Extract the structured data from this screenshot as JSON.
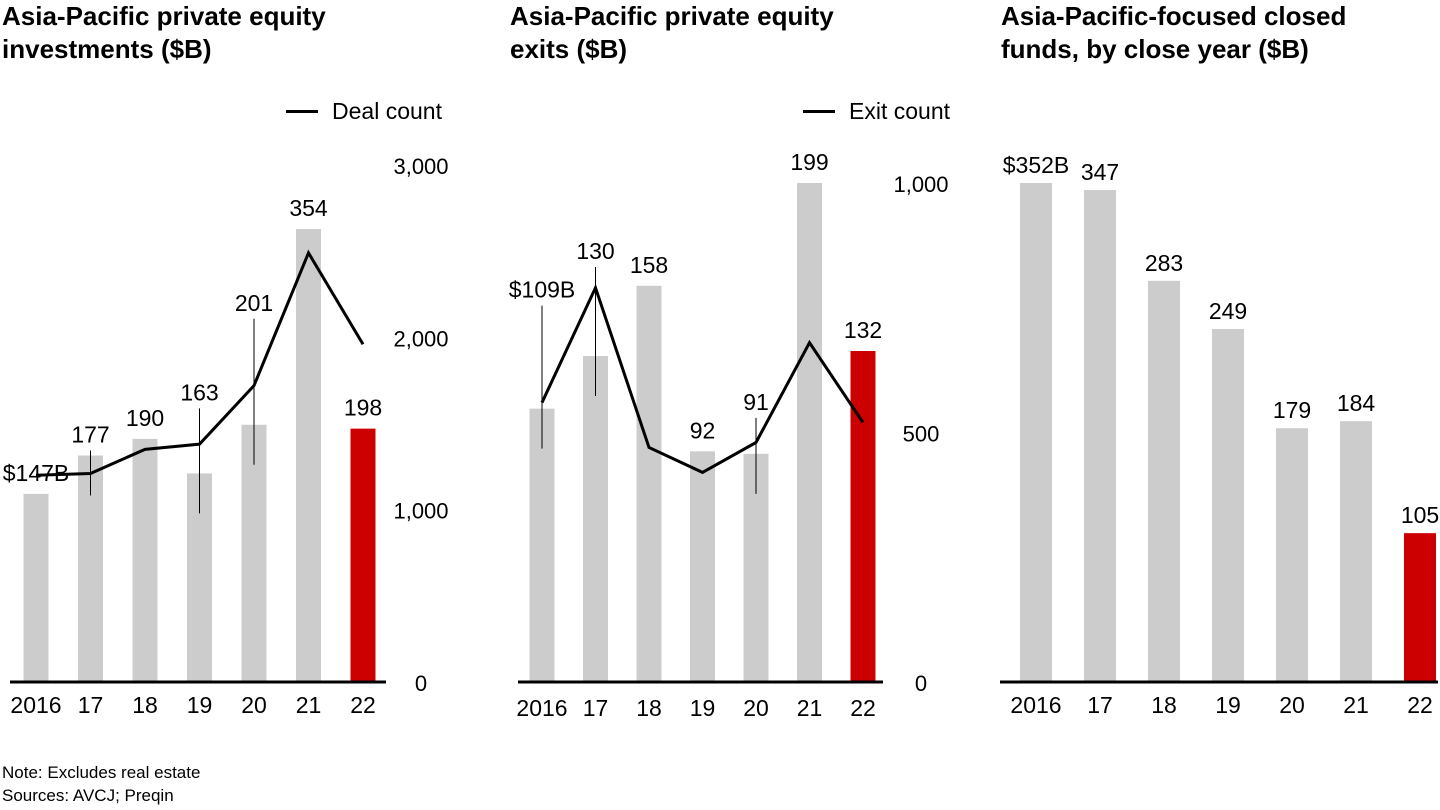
{
  "colors": {
    "bar": "#cccccc",
    "highlight": "#cc0000",
    "line": "#000000",
    "axis": "#000000"
  },
  "chart_data": [
    {
      "type": "bar",
      "title": "Asia-Pacific private equity investments ($B)",
      "categories": [
        "2016",
        "17",
        "18",
        "19",
        "20",
        "21",
        "22"
      ],
      "values": [
        147,
        177,
        190,
        163,
        201,
        354,
        198
      ],
      "value_labels": [
        "$147B",
        "177",
        "190",
        "163",
        "201",
        "354",
        "198"
      ],
      "highlight_index": 6,
      "ylim": [
        0,
        400
      ],
      "line_series": {
        "name": "Deal count",
        "axis": "right",
        "values": [
          1200,
          1210,
          1350,
          1380,
          1720,
          2490,
          1960
        ]
      },
      "right_axis": {
        "ticks": [
          0,
          1000,
          2000,
          3000
        ],
        "tick_labels": [
          "0",
          "1,000",
          "2,000",
          "3,000"
        ],
        "ylim": [
          0,
          3000
        ]
      }
    },
    {
      "type": "bar",
      "title": "Asia-Pacific private equity exits ($B)",
      "categories": [
        "2016",
        "17",
        "18",
        "19",
        "20",
        "21",
        "22"
      ],
      "values": [
        109,
        130,
        158,
        92,
        91,
        199,
        132
      ],
      "value_labels": [
        "$109B",
        "130",
        "158",
        "92",
        "91",
        "199",
        "132"
      ],
      "highlight_index": 6,
      "ylim": [
        0,
        203
      ],
      "line_series": {
        "name": "Exit count",
        "axis": "right",
        "values": [
          560,
          790,
          470,
          420,
          480,
          680,
          520
        ]
      },
      "right_axis": {
        "ticks": [
          0,
          500,
          1000
        ],
        "tick_labels": [
          "0",
          "500",
          "1,000"
        ],
        "ylim": [
          0,
          1000
        ]
      }
    },
    {
      "type": "bar",
      "title": "Asia-Pacific-focused closed funds, by close year ($B)",
      "categories": [
        "2016",
        "17",
        "18",
        "19",
        "20",
        "21",
        "22"
      ],
      "values": [
        352,
        347,
        283,
        249,
        179,
        184,
        105
      ],
      "value_labels": [
        "$352B",
        "347",
        "283",
        "249",
        "179",
        "184",
        "105"
      ],
      "highlight_index": 6,
      "ylim": [
        0,
        352
      ]
    }
  ],
  "footnotes": {
    "note": "Note: Excludes real estate",
    "sources": "Sources: AVCJ; Preqin"
  }
}
